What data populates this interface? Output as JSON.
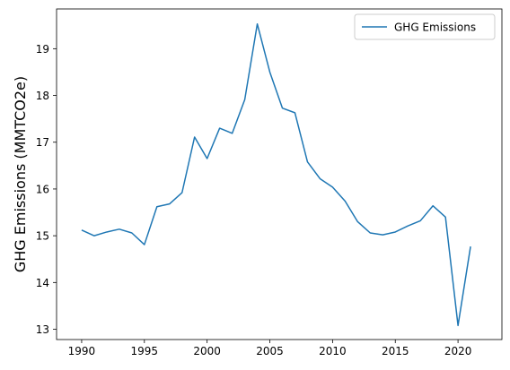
{
  "chart_data": {
    "type": "line",
    "title": "",
    "xlabel": "",
    "ylabel": "GHG Emissions (MMTCO2e)",
    "xlim": [
      1988,
      2023.5
    ],
    "ylim": [
      12.78,
      19.85
    ],
    "xticks": [
      1990,
      1995,
      2000,
      2005,
      2010,
      2015,
      2020
    ],
    "yticks": [
      13,
      14,
      15,
      16,
      17,
      18,
      19
    ],
    "grid": false,
    "legend": "top-right",
    "series": [
      {
        "name": "GHG Emissions",
        "color": "#1f77b4",
        "x": [
          1990,
          1991,
          1992,
          1993,
          1994,
          1995,
          1996,
          1997,
          1998,
          1999,
          2000,
          2001,
          2002,
          2003,
          2004,
          2005,
          2006,
          2007,
          2008,
          2009,
          2010,
          2011,
          2012,
          2013,
          2014,
          2015,
          2016,
          2017,
          2018,
          2019,
          2020,
          2021
        ],
        "y": [
          15.12,
          15.0,
          15.08,
          15.14,
          15.06,
          14.81,
          15.62,
          15.68,
          15.92,
          17.11,
          16.65,
          17.3,
          17.19,
          17.91,
          19.53,
          18.5,
          17.73,
          17.63,
          16.58,
          16.22,
          16.04,
          15.74,
          15.3,
          15.06,
          15.02,
          15.08,
          15.21,
          15.32,
          15.64,
          15.4,
          13.08,
          14.77
        ]
      }
    ]
  }
}
